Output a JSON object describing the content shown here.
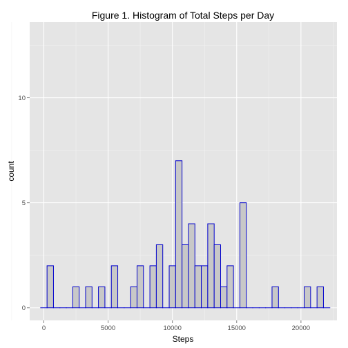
{
  "chart_data": {
    "type": "bar",
    "title": "Figure 1. Histogram of Total Steps per Day",
    "xlabel": "Steps",
    "ylabel": "count",
    "xlim": [
      -1100,
      22800
    ],
    "ylim": [
      -0.6,
      13.6
    ],
    "x_ticks": [
      0,
      5000,
      10000,
      15000,
      20000
    ],
    "x_tick_labels": [
      "0",
      "5000",
      "10000",
      "15000",
      "20000"
    ],
    "y_ticks": [
      0,
      5,
      10
    ],
    "y_tick_labels": [
      "0",
      "5",
      "10"
    ],
    "bin_width": 500,
    "bin_start": -250,
    "counts": [
      0,
      2,
      0,
      0,
      0,
      1,
      0,
      1,
      0,
      1,
      0,
      2,
      0,
      0,
      1,
      2,
      0,
      2,
      3,
      0,
      2,
      7,
      3,
      4,
      2,
      2,
      4,
      3,
      1,
      2,
      0,
      5,
      0,
      0,
      0,
      0,
      1,
      0,
      0,
      0,
      0,
      1,
      0,
      1,
      0
    ],
    "grid": true,
    "colors": {
      "panel_bg": "#e5e5e5",
      "grid_major": "#ffffff",
      "grid_minor": "#f2f2f2",
      "bar_fill": "#c8c8c8",
      "bar_outline": "#0000cc",
      "tick": "#7f7f7f"
    }
  }
}
